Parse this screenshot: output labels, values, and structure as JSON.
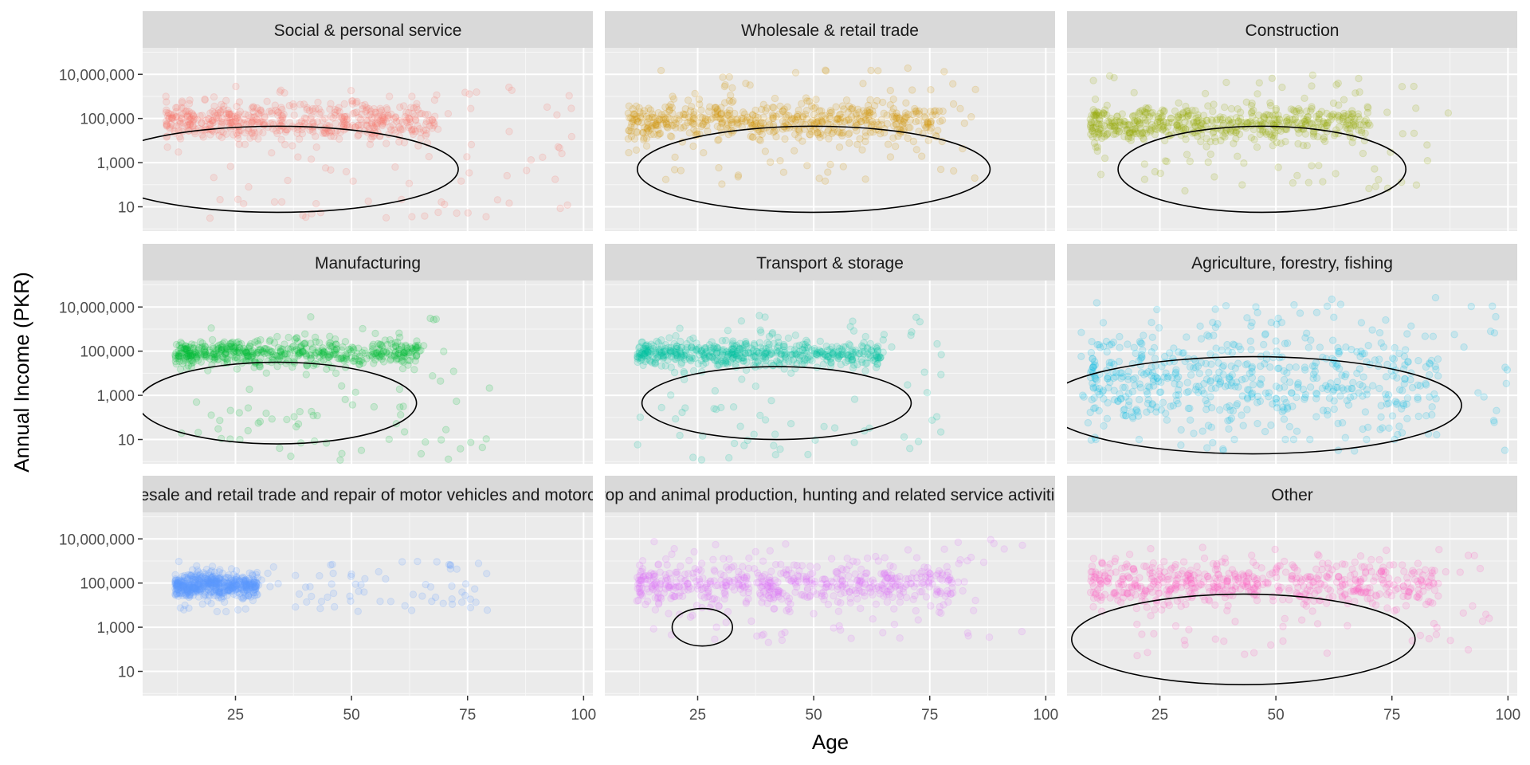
{
  "chart_data": {
    "type": "scatter",
    "xlabel": "Age",
    "ylabel": "Annual Income (PKR)",
    "xlim": [
      5,
      102
    ],
    "ylim_log10": [
      -0.1,
      8.2
    ],
    "y_scale": "log10",
    "x_ticks": [
      25,
      50,
      75,
      100
    ],
    "x_tick_labels": [
      "25",
      "50",
      "75",
      "100"
    ],
    "y_ticks": [
      10,
      1000,
      100000,
      10000000
    ],
    "y_tick_labels": [
      "10",
      "1,000",
      "100,000",
      "10,000,000"
    ],
    "grid": true,
    "legend": "none",
    "point_alpha": 0.15,
    "panels": [
      {
        "strip": "Social & personal service",
        "color": "#F8766D",
        "dense_band": {
          "x": [
            10,
            68
          ],
          "y": [
            10000,
            500000
          ]
        },
        "sparse_range": {
          "x": [
            10,
            100
          ],
          "y": [
            3,
            3000000
          ]
        },
        "outline_ellipse": {
          "cx": 34,
          "cy_log10": 2.7,
          "rx": 39,
          "ry_log10": 1.95
        }
      },
      {
        "strip": "Wholesale & retail trade",
        "color": "#D39200",
        "dense_band": {
          "x": [
            10,
            78
          ],
          "y": [
            10000,
            500000
          ]
        },
        "sparse_range": {
          "x": [
            10,
            85
          ],
          "y": [
            100,
            20000000
          ]
        },
        "outline_ellipse": {
          "cx": 50,
          "cy_log10": 2.7,
          "rx": 38,
          "ry_log10": 1.95
        }
      },
      {
        "strip": "Construction",
        "color": "#93AA00",
        "dense_band": {
          "x": [
            10,
            70
          ],
          "y": [
            10000,
            300000
          ]
        },
        "sparse_range": {
          "x": [
            10,
            88
          ],
          "y": [
            50,
            10000000
          ]
        },
        "outline_ellipse": {
          "cx": 47,
          "cy_log10": 2.7,
          "rx": 31,
          "ry_log10": 1.95
        }
      },
      {
        "strip": "Manufacturing",
        "color": "#00BA38",
        "dense_band": {
          "x": [
            12,
            65
          ],
          "y": [
            20000,
            300000
          ]
        },
        "sparse_range": {
          "x": [
            12,
            80
          ],
          "y": [
            1,
            5000000
          ]
        },
        "outline_ellipse": {
          "cx": 34,
          "cy_log10": 2.65,
          "rx": 30,
          "ry_log10": 1.85
        }
      },
      {
        "strip": "Transport & storage",
        "color": "#00C19F",
        "dense_band": {
          "x": [
            12,
            65
          ],
          "y": [
            20000,
            300000
          ]
        },
        "sparse_range": {
          "x": [
            12,
            78
          ],
          "y": [
            1,
            5000000
          ]
        },
        "outline_ellipse": {
          "cx": 42,
          "cy_log10": 2.65,
          "rx": 29,
          "ry_log10": 1.65
        }
      },
      {
        "strip": "Agriculture, forestry, fishing",
        "color": "#00B9E3",
        "dense_band": {
          "x": [
            10,
            85
          ],
          "y": [
            20,
            1000000
          ]
        },
        "sparse_range": {
          "x": [
            8,
            100
          ],
          "y": [
            3,
            30000000
          ]
        },
        "outline_ellipse": {
          "cx": 45,
          "cy_log10": 2.55,
          "rx": 45,
          "ry_log10": 2.2
        }
      },
      {
        "strip": "Wholesale and retail trade and repair of motor vehicles and motorcycles",
        "color": "#619CFF",
        "dense_band": {
          "x": [
            12,
            30
          ],
          "y": [
            20000,
            300000
          ]
        },
        "sparse_range": {
          "x": [
            12,
            80
          ],
          "y": [
            5000,
            1000000
          ]
        }
      },
      {
        "strip": "Crop and animal production, hunting and related service activities",
        "color": "#DB72FB",
        "dense_band": {
          "x": [
            12,
            80
          ],
          "y": [
            10000,
            700000
          ]
        },
        "sparse_range": {
          "x": [
            10,
            95
          ],
          "y": [
            200,
            10000000
          ]
        },
        "outline_ellipse": {
          "cx": 26,
          "cy_log10": 3.0,
          "rx": 6.5,
          "ry_log10": 0.85
        }
      },
      {
        "strip": "Other",
        "color": "#FF61C3",
        "dense_band": {
          "x": [
            10,
            85
          ],
          "y": [
            10000,
            1000000
          ]
        },
        "sparse_range": {
          "x": [
            10,
            96
          ],
          "y": [
            50,
            5000000
          ]
        },
        "outline_ellipse": {
          "cx": 43,
          "cy_log10": 2.45,
          "rx": 37,
          "ry_log10": 2.05
        }
      }
    ]
  }
}
